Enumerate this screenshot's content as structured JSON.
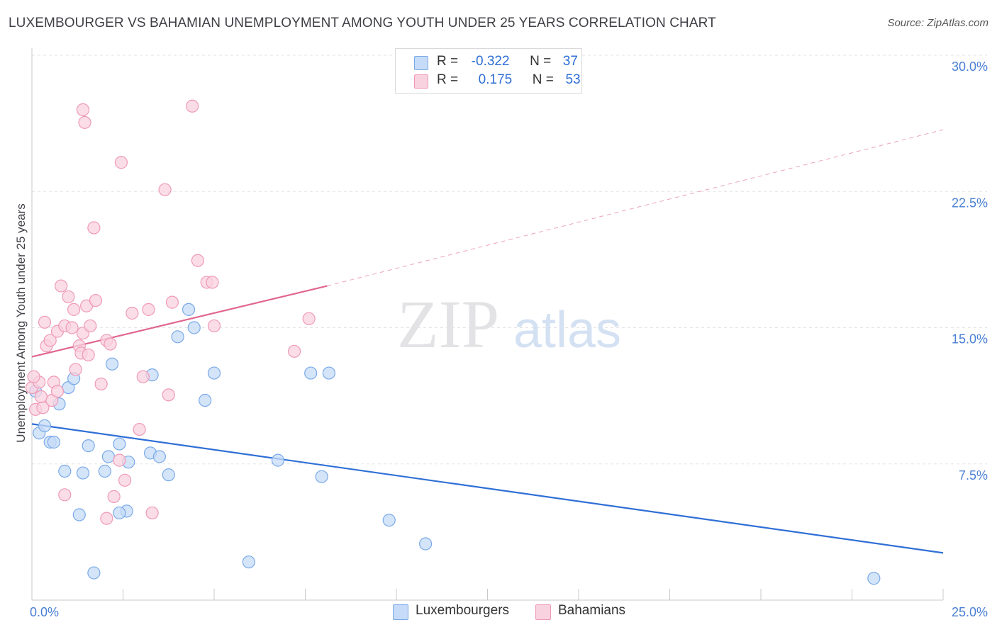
{
  "title": "LUXEMBOURGER VS BAHAMIAN UNEMPLOYMENT AMONG YOUTH UNDER 25 YEARS CORRELATION CHART",
  "source": "Source: ZipAtlas.com",
  "watermark": {
    "part1": "ZIP",
    "part2": "atlas"
  },
  "legend": {
    "rows": [
      {
        "r_label": "R =",
        "r_value": "-0.322",
        "n_label": "N =",
        "n_value": "37"
      },
      {
        "r_label": "R =",
        "r_value": "0.175",
        "n_label": "N =",
        "n_value": "53"
      }
    ]
  },
  "bottom_legend": [
    "Luxembourgers",
    "Bahamians"
  ],
  "chart_data": {
    "type": "scatter",
    "title": "LUXEMBOURGER VS BAHAMIAN UNEMPLOYMENT AMONG YOUTH UNDER 25 YEARS CORRELATION CHART",
    "xlabel": "",
    "ylabel": "Unemployment Among Youth under 25 years",
    "xlim": [
      0,
      25
    ],
    "ylim": [
      0,
      30
    ],
    "x_tick_labels": [
      "0.0%",
      "25.0%"
    ],
    "y_ticks": [
      7.5,
      15.0,
      22.5,
      30.0
    ],
    "y_tick_labels": [
      "7.5%",
      "15.0%",
      "22.5%",
      "30.0%"
    ],
    "grid": true,
    "legend_position": "top-center",
    "series": [
      {
        "name": "Luxembourgers",
        "color": "#7aaae8",
        "fill": "#c6dbf7",
        "line_color": "#2f6fd6",
        "r": -0.322,
        "n": 37,
        "trend": {
          "x0": 0.0,
          "y0": 9.7,
          "x1": 25.0,
          "y1": 2.6
        },
        "points": [
          [
            0.1,
            11.5
          ],
          [
            0.2,
            9.2
          ],
          [
            0.35,
            9.6
          ],
          [
            0.5,
            8.7
          ],
          [
            0.6,
            8.7
          ],
          [
            0.75,
            10.8
          ],
          [
            1.0,
            11.7
          ],
          [
            1.15,
            12.2
          ],
          [
            0.9,
            7.1
          ],
          [
            1.4,
            7.0
          ],
          [
            1.55,
            8.5
          ],
          [
            2.0,
            7.1
          ],
          [
            2.1,
            7.9
          ],
          [
            2.2,
            13.0
          ],
          [
            2.4,
            8.6
          ],
          [
            2.65,
            7.6
          ],
          [
            2.6,
            4.9
          ],
          [
            2.4,
            4.8
          ],
          [
            1.3,
            4.7
          ],
          [
            1.7,
            1.5
          ],
          [
            3.25,
            8.1
          ],
          [
            3.3,
            12.4
          ],
          [
            3.5,
            7.9
          ],
          [
            3.75,
            6.9
          ],
          [
            4.0,
            14.5
          ],
          [
            4.3,
            16.0
          ],
          [
            4.45,
            15.0
          ],
          [
            4.75,
            11.0
          ],
          [
            5.0,
            12.5
          ],
          [
            5.95,
            2.1
          ],
          [
            6.75,
            7.7
          ],
          [
            7.65,
            12.5
          ],
          [
            8.15,
            12.5
          ],
          [
            7.95,
            6.8
          ],
          [
            9.8,
            4.4
          ],
          [
            10.8,
            3.1
          ],
          [
            23.1,
            1.2
          ]
        ]
      },
      {
        "name": "Bahamians",
        "color": "#ef9ab6",
        "fill": "#f9d2df",
        "line_color": "#e0668f",
        "r": 0.175,
        "n": 53,
        "trend": {
          "x0": 0.0,
          "y0": 13.4,
          "x1": 8.1,
          "y1": 17.3
        },
        "trend_dashed": {
          "x0": 8.1,
          "y0": 17.3,
          "x1": 25.0,
          "y1": 25.9
        },
        "points": [
          [
            0.0,
            11.7
          ],
          [
            0.1,
            10.5
          ],
          [
            0.2,
            12.0
          ],
          [
            0.3,
            10.6
          ],
          [
            0.4,
            14.0
          ],
          [
            0.35,
            15.3
          ],
          [
            0.5,
            14.3
          ],
          [
            0.55,
            11.0
          ],
          [
            0.6,
            12.0
          ],
          [
            0.7,
            14.8
          ],
          [
            0.7,
            11.5
          ],
          [
            0.8,
            17.3
          ],
          [
            0.9,
            15.1
          ],
          [
            1.0,
            16.7
          ],
          [
            1.1,
            15.0
          ],
          [
            1.15,
            16.0
          ],
          [
            1.2,
            12.7
          ],
          [
            1.3,
            14.0
          ],
          [
            1.35,
            13.6
          ],
          [
            1.4,
            14.7
          ],
          [
            1.5,
            16.2
          ],
          [
            1.55,
            13.5
          ],
          [
            1.6,
            15.1
          ],
          [
            1.75,
            16.5
          ],
          [
            1.7,
            20.5
          ],
          [
            1.4,
            27.0
          ],
          [
            1.45,
            26.3
          ],
          [
            1.9,
            11.9
          ],
          [
            2.05,
            14.3
          ],
          [
            2.15,
            14.1
          ],
          [
            2.25,
            5.7
          ],
          [
            2.4,
            7.7
          ],
          [
            2.45,
            24.1
          ],
          [
            2.55,
            6.6
          ],
          [
            2.75,
            15.8
          ],
          [
            2.95,
            9.4
          ],
          [
            3.05,
            12.3
          ],
          [
            3.3,
            4.8
          ],
          [
            3.65,
            22.6
          ],
          [
            3.75,
            11.3
          ],
          [
            3.85,
            16.4
          ],
          [
            4.4,
            27.2
          ],
          [
            4.55,
            18.7
          ],
          [
            4.8,
            17.5
          ],
          [
            4.95,
            17.5
          ],
          [
            5.0,
            15.1
          ],
          [
            7.2,
            13.7
          ],
          [
            7.6,
            15.5
          ],
          [
            0.9,
            5.8
          ],
          [
            2.05,
            4.5
          ],
          [
            0.05,
            12.3
          ],
          [
            0.25,
            11.2
          ],
          [
            3.2,
            16.0
          ]
        ]
      }
    ]
  }
}
